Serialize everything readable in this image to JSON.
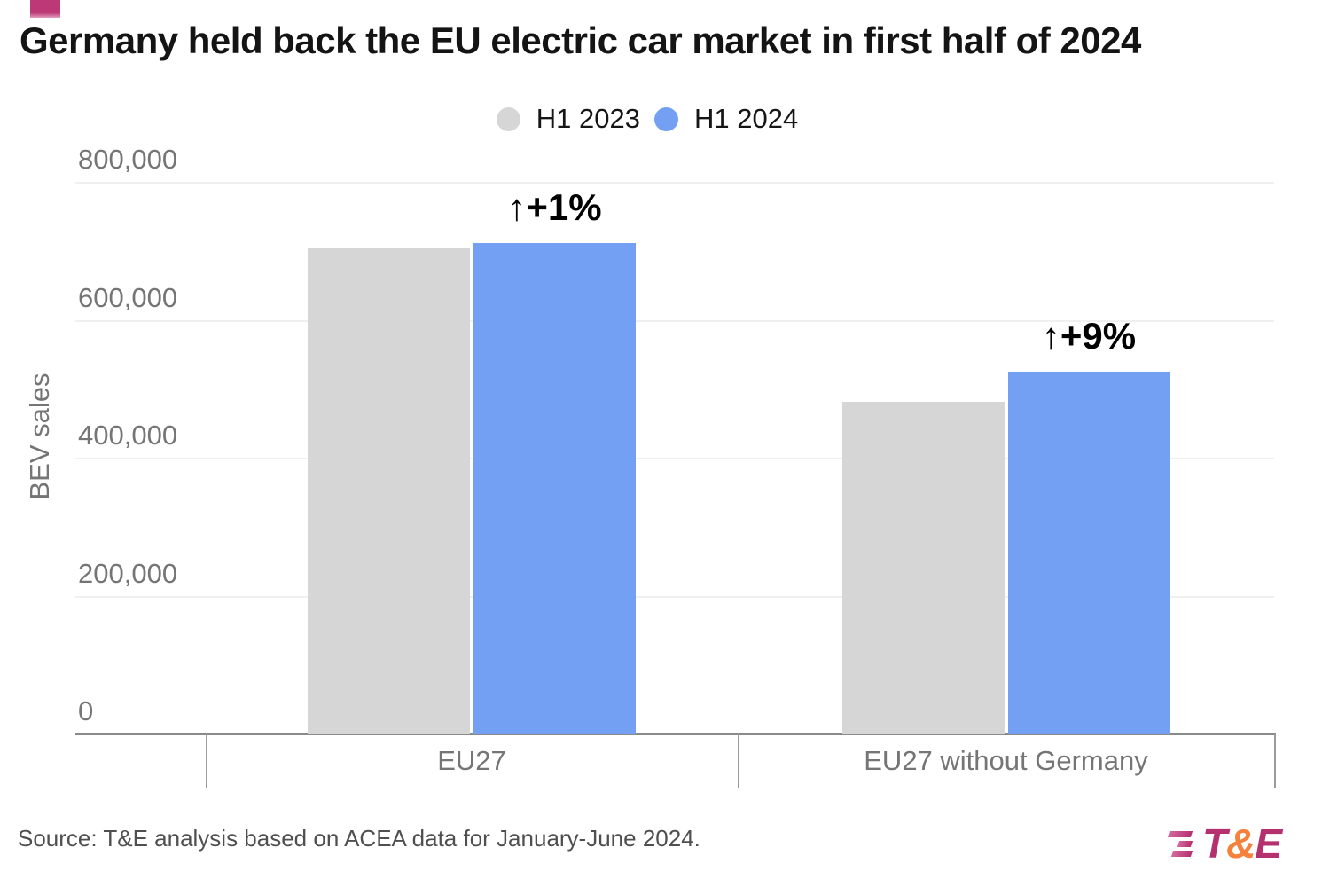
{
  "brand": {
    "accent_color": "#BC3876",
    "logo_magenta": "#B5306F",
    "logo_orange": "#F5813C"
  },
  "chart_data": {
    "type": "bar",
    "title": "Germany held back the EU electric car market in first half of 2024",
    "categories": [
      "EU27",
      "EU27 without Germany"
    ],
    "series": [
      {
        "name": "H1 2023",
        "color": "#D6D6D6",
        "values": [
          705000,
          482000
        ]
      },
      {
        "name": "H1 2024",
        "color": "#73A0F2",
        "values": [
          712000,
          526000
        ]
      }
    ],
    "annotations": [
      {
        "category": "EU27",
        "text": "↑+1%"
      },
      {
        "category": "EU27 without Germany",
        "text": "↑+9%"
      }
    ],
    "ylabel": "BEV sales",
    "xlabel": "",
    "ylim": [
      0,
      800000
    ],
    "yticks": [
      {
        "value": 0,
        "label": "0"
      },
      {
        "value": 200000,
        "label": "200,000"
      },
      {
        "value": 400000,
        "label": "400,000"
      },
      {
        "value": 600000,
        "label": "600,000"
      },
      {
        "value": 800000,
        "label": "800,000"
      }
    ],
    "grid": true,
    "legend_position": "top"
  },
  "footer": {
    "source": "Source: T&E analysis based on ACEA data for January-June 2024.",
    "logo_parts": [
      {
        "text": "T",
        "color": "#B5306F"
      },
      {
        "text": "&",
        "color": "#F5813C"
      },
      {
        "text": "E",
        "color": "#B5306F"
      }
    ]
  }
}
